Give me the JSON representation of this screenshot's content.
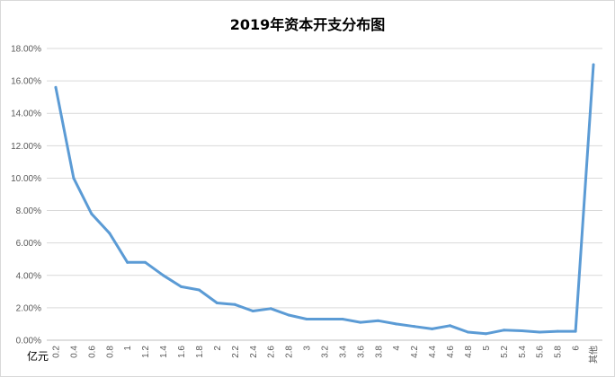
{
  "chart_data": {
    "type": "line",
    "title": "2019年资本开支分布图",
    "xlabel": "亿元",
    "ylabel": "",
    "ylim": [
      0,
      18
    ],
    "yticks": [
      "0.00%",
      "2.00%",
      "4.00%",
      "6.00%",
      "8.00%",
      "10.00%",
      "12.00%",
      "14.00%",
      "16.00%",
      "18.00%"
    ],
    "grid": true,
    "line_color": "#5b9bd5",
    "categories": [
      "0.2",
      "0.4",
      "0.6",
      "0.8",
      "1",
      "1.2",
      "1.4",
      "1.6",
      "1.8",
      "2",
      "2.2",
      "2.4",
      "2.6",
      "2.8",
      "3",
      "3.2",
      "3.4",
      "3.6",
      "3.8",
      "4",
      "4.2",
      "4.4",
      "4.6",
      "4.8",
      "5",
      "5.2",
      "5.4",
      "5.6",
      "5.8",
      "6",
      "其他"
    ],
    "series": [
      {
        "values": [
          15.6,
          10.0,
          7.8,
          6.6,
          4.8,
          4.8,
          4.0,
          3.3,
          3.1,
          2.3,
          2.2,
          1.8,
          1.95,
          1.55,
          1.3,
          1.3,
          1.3,
          1.1,
          1.2,
          1.0,
          0.85,
          0.7,
          0.9,
          0.5,
          0.4,
          0.62,
          0.58,
          0.5,
          0.55,
          0.55,
          17.0
        ]
      }
    ]
  }
}
